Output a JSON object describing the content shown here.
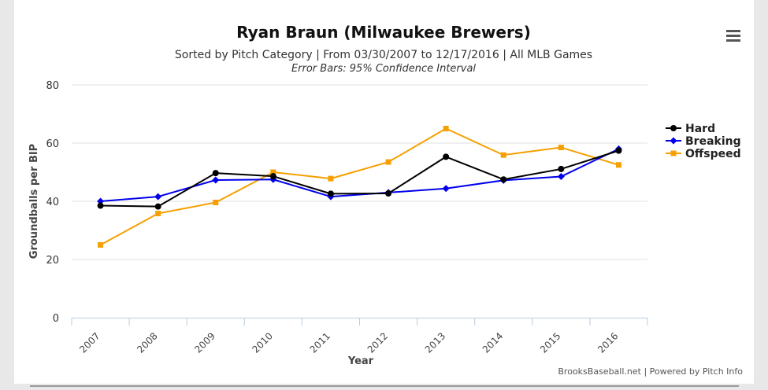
{
  "menu_icon": "hamburger-menu-icon",
  "colors": {
    "Hard": "#000000",
    "Breaking": "#0000ee",
    "Offspeed": "#f5a000",
    "grid": "#e0e0e0",
    "axis": "#b8cce0"
  },
  "credits": "BrooksBaseball.net | Powered by Pitch Info",
  "chart_data": {
    "type": "line",
    "title": "Ryan Braun (Milwaukee Brewers)",
    "subtitle": "Sorted by Pitch Category | From 03/30/2007 to 12/17/2016 | All MLB Games",
    "subtitle2": "Error Bars: 95% Confidence Interval",
    "xlabel": "Year",
    "ylabel": "Groundballs per BIP",
    "ylim": [
      0,
      80
    ],
    "yticks": [
      "0",
      "20",
      "40",
      "60",
      "80"
    ],
    "categories": [
      "2007",
      "2008",
      "2009",
      "2010",
      "2011",
      "2012",
      "2013",
      "2014",
      "2015",
      "2016"
    ],
    "grid": true,
    "legend_position": "right",
    "series": [
      {
        "name": "Hard",
        "marker": "circle",
        "values": [
          38.5,
          38.2,
          49.7,
          48.6,
          42.6,
          42.7,
          55.3,
          47.5,
          51.1,
          57.4
        ]
      },
      {
        "name": "Breaking",
        "marker": "diamond",
        "values": [
          40.0,
          41.6,
          47.3,
          47.5,
          41.6,
          43.0,
          44.4,
          47.2,
          48.5,
          58.0
        ]
      },
      {
        "name": "Offspeed",
        "marker": "square",
        "values": [
          25.0,
          35.8,
          39.6,
          50.0,
          47.8,
          53.5,
          65.0,
          55.9,
          58.5,
          52.5
        ]
      }
    ]
  }
}
